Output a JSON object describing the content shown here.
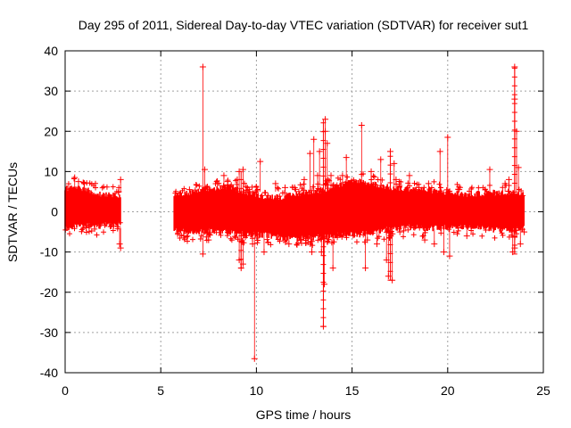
{
  "chart_data": {
    "type": "scatter",
    "title": "Day 295 of 2011, Sidereal Day-to-day VTEC variation (SDTVAR) for receiver sut1",
    "xlabel": "GPS time / hours",
    "ylabel": "SDTVAR / TECUs",
    "xlim": [
      0,
      25
    ],
    "ylim": [
      -40,
      40
    ],
    "xticks": [
      0,
      5,
      10,
      15,
      20,
      25
    ],
    "yticks": [
      -40,
      -30,
      -20,
      -10,
      0,
      10,
      20,
      30,
      40
    ],
    "grid": true,
    "marker": "+",
    "series_color": "#ff0000",
    "series": [
      {
        "name": "SDTVAR",
        "segments": [
          {
            "x_start": 0.0,
            "x_end": 2.9,
            "band_low": [
              -3.5,
              -3,
              -2.5,
              -2.5,
              -3,
              -2.5,
              -3,
              -2
            ],
            "band_high": [
              5,
              5.5,
              5,
              4.5,
              4,
              3.5,
              3.5,
              3
            ]
          },
          {
            "x_start": 5.7,
            "x_end": 24.0,
            "band_low": [
              -4,
              -4.5,
              -4,
              -4.5,
              -5,
              -5,
              -6,
              -6,
              -5.5,
              -5,
              -5,
              -4,
              -3.5,
              -3,
              -3.5,
              -3,
              -3,
              -3.5,
              -4,
              -3.5
            ],
            "band_high": [
              3.5,
              4,
              5,
              5.5,
              4,
              3,
              3,
              4,
              4.5,
              6,
              7,
              6,
              5,
              5,
              4.5,
              4,
              3.5,
              4,
              4,
              4
            ]
          }
        ],
        "points": [
          {
            "x": 0.5,
            "y": 8.5
          },
          {
            "x": 0.7,
            "y": 7.5
          },
          {
            "x": 1.0,
            "y": 7
          },
          {
            "x": 1.1,
            "y": -4
          },
          {
            "x": 2.8,
            "y": 5
          },
          {
            "x": 2.9,
            "y": 8
          },
          {
            "x": 2.9,
            "y": -9
          },
          {
            "x": 2.85,
            "y": -8
          },
          {
            "x": 5.9,
            "y": 4
          },
          {
            "x": 6.2,
            "y": -6
          },
          {
            "x": 6.5,
            "y": 5.5
          },
          {
            "x": 7.2,
            "y": 36
          },
          {
            "x": 7.3,
            "y": 10.5
          },
          {
            "x": 7.2,
            "y": -10.5
          },
          {
            "x": 7.5,
            "y": -7
          },
          {
            "x": 8.3,
            "y": 9
          },
          {
            "x": 8.5,
            "y": 7.5
          },
          {
            "x": 9.0,
            "y": 8
          },
          {
            "x": 9.1,
            "y": 10
          },
          {
            "x": 9.3,
            "y": 10.5
          },
          {
            "x": 9.1,
            "y": -12
          },
          {
            "x": 9.2,
            "y": -14
          },
          {
            "x": 9.3,
            "y": -13
          },
          {
            "x": 9.8,
            "y": -8
          },
          {
            "x": 9.9,
            "y": -36.5
          },
          {
            "x": 10.2,
            "y": 12.5
          },
          {
            "x": 10.4,
            "y": -10
          },
          {
            "x": 11.0,
            "y": 7
          },
          {
            "x": 11.5,
            "y": 6
          },
          {
            "x": 11.7,
            "y": -8
          },
          {
            "x": 12.0,
            "y": 6
          },
          {
            "x": 12.3,
            "y": -7
          },
          {
            "x": 12.5,
            "y": 8
          },
          {
            "x": 12.8,
            "y": 14.5
          },
          {
            "x": 12.9,
            "y": -10
          },
          {
            "x": 13.0,
            "y": 18
          },
          {
            "x": 13.2,
            "y": 9
          },
          {
            "x": 13.3,
            "y": 15
          },
          {
            "x": 13.4,
            "y": -10
          },
          {
            "x": 13.5,
            "y": -28.5
          },
          {
            "x": 13.55,
            "y": -18
          },
          {
            "x": 13.6,
            "y": 23
          },
          {
            "x": 13.6,
            "y": 20
          },
          {
            "x": 13.7,
            "y": 17
          },
          {
            "x": 13.9,
            "y": 9
          },
          {
            "x": 14.0,
            "y": -14
          },
          {
            "x": 14.2,
            "y": 6
          },
          {
            "x": 14.5,
            "y": 9
          },
          {
            "x": 14.7,
            "y": 13.5
          },
          {
            "x": 15.1,
            "y": -5
          },
          {
            "x": 15.5,
            "y": 21.5
          },
          {
            "x": 15.7,
            "y": -14
          },
          {
            "x": 15.8,
            "y": -7
          },
          {
            "x": 16.0,
            "y": 10
          },
          {
            "x": 16.3,
            "y": -8
          },
          {
            "x": 16.5,
            "y": 13
          },
          {
            "x": 16.8,
            "y": -12
          },
          {
            "x": 16.9,
            "y": -16
          },
          {
            "x": 17.0,
            "y": 15
          },
          {
            "x": 17.2,
            "y": 12
          },
          {
            "x": 17.1,
            "y": -17
          },
          {
            "x": 17.3,
            "y": 8
          },
          {
            "x": 17.5,
            "y": -5
          },
          {
            "x": 18.0,
            "y": 9
          },
          {
            "x": 18.5,
            "y": 6
          },
          {
            "x": 18.8,
            "y": -7
          },
          {
            "x": 19.0,
            "y": 7
          },
          {
            "x": 19.3,
            "y": -8
          },
          {
            "x": 19.6,
            "y": 15
          },
          {
            "x": 19.8,
            "y": -10
          },
          {
            "x": 20.0,
            "y": 18.5
          },
          {
            "x": 20.1,
            "y": -11
          },
          {
            "x": 20.6,
            "y": 5.5
          },
          {
            "x": 21.0,
            "y": -6
          },
          {
            "x": 22.2,
            "y": 10.5
          },
          {
            "x": 23.0,
            "y": 7
          },
          {
            "x": 23.2,
            "y": 8
          },
          {
            "x": 23.4,
            "y": -10
          },
          {
            "x": 23.5,
            "y": 36
          },
          {
            "x": 23.5,
            "y": 28
          },
          {
            "x": 23.6,
            "y": 20
          },
          {
            "x": 23.5,
            "y": -9
          },
          {
            "x": 23.7,
            "y": 11
          },
          {
            "x": 23.8,
            "y": -8
          },
          {
            "x": 23.9,
            "y": 4
          },
          {
            "x": 24.0,
            "y": -5
          }
        ],
        "spikes": [
          {
            "x": 13.5,
            "y_low": -28.5,
            "y_high": 23
          },
          {
            "x": 23.5,
            "y_low": -10.5,
            "y_high": 36
          },
          {
            "x": 9.2,
            "y_low": -14,
            "y_high": 10
          },
          {
            "x": 17.0,
            "y_low": -17,
            "y_high": 15
          }
        ]
      }
    ]
  }
}
